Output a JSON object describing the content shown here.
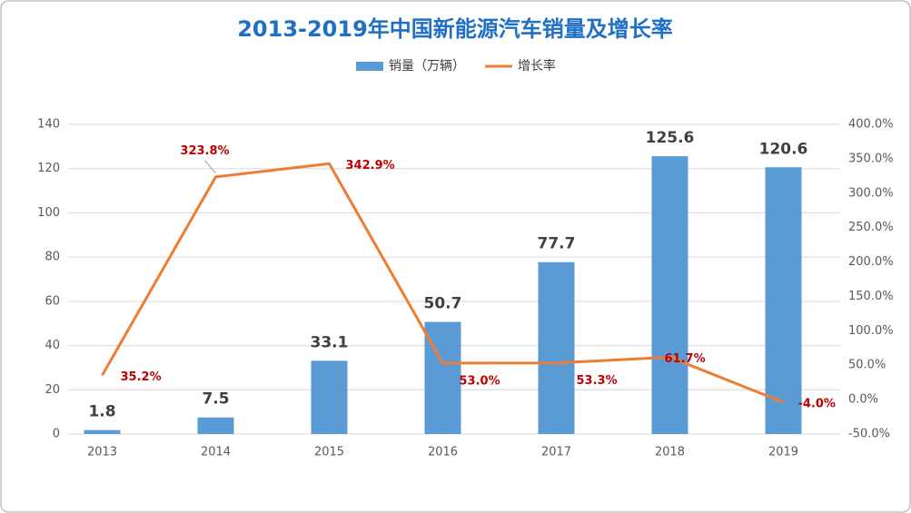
{
  "chart_data": {
    "type": "combo",
    "title": "2013-2019年中国新能源汽车销量及增长率",
    "categories": [
      "2013",
      "2014",
      "2015",
      "2016",
      "2017",
      "2018",
      "2019"
    ],
    "series": [
      {
        "name": "销量（万辆）",
        "type": "bar",
        "color": "#5b9bd5",
        "values": [
          1.8,
          7.5,
          33.1,
          50.7,
          77.7,
          125.6,
          120.6
        ]
      },
      {
        "name": "增长率",
        "type": "line",
        "axis": "y2",
        "color": "#ed7d31",
        "values": [
          35.2,
          323.8,
          342.9,
          53.0,
          53.3,
          61.7,
          -4.0
        ],
        "value_labels": [
          "35.2%",
          "323.8%",
          "342.9%",
          "53.0%",
          "53.3%",
          "61.7%",
          "-4.0%"
        ]
      }
    ],
    "ylim": [
      0,
      140
    ],
    "yticks": [
      0,
      20,
      40,
      60,
      80,
      100,
      120,
      140
    ],
    "y2lim": [
      -50,
      400
    ],
    "y2ticks": [
      {
        "value": -50,
        "label": "-50.0%"
      },
      {
        "value": 0,
        "label": "0.0%"
      },
      {
        "value": 50,
        "label": "50.0%"
      },
      {
        "value": 100,
        "label": "100.0%"
      },
      {
        "value": 150,
        "label": "150.0%"
      },
      {
        "value": 200,
        "label": "200.0%"
      },
      {
        "value": 250,
        "label": "250.0%"
      },
      {
        "value": 300,
        "label": "300.0%"
      },
      {
        "value": 350,
        "label": "350.0%"
      },
      {
        "value": 400,
        "label": "400.0%"
      }
    ],
    "grid": true,
    "legend": "top"
  }
}
